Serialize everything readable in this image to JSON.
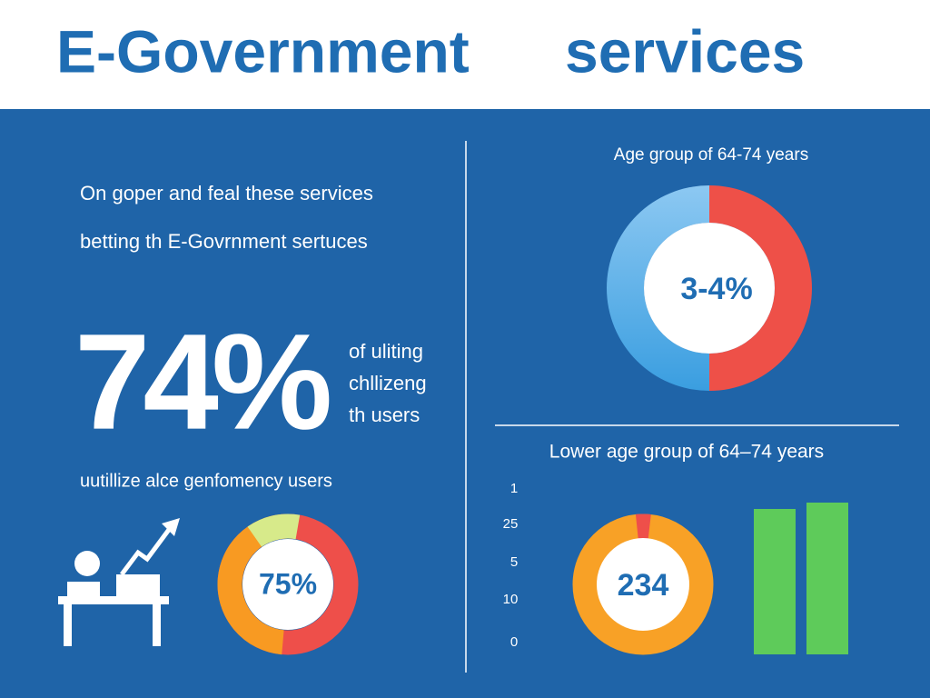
{
  "header": {
    "title": [
      "E-Government",
      "services"
    ]
  },
  "left": {
    "intro": [
      "On goper and feal these services",
      "betting th E-Govrnment sertuces"
    ],
    "stat": "74%",
    "stat_note": [
      "of uliting",
      "chllizeng",
      "th users"
    ],
    "caption": "uutillize alce genfomency users",
    "donut_label": "75%"
  },
  "right_top": {
    "title": "Age group of 64-74 years",
    "donut_label": "3-4%"
  },
  "right_bottom": {
    "title": "Lower age group of 64–74 years",
    "axis_labels": [
      "1",
      "25",
      "5",
      "10",
      "0"
    ],
    "donut_label": "234"
  }
}
